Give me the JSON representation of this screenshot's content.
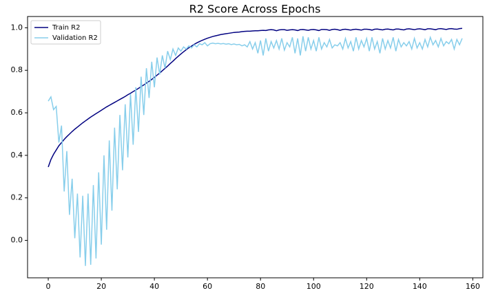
{
  "chart_data": {
    "type": "line",
    "title": "R2 Score Across Epochs",
    "x": [
      0,
      1,
      2,
      3,
      4,
      5,
      6,
      7,
      8,
      9,
      10,
      11,
      12,
      13,
      14,
      15,
      16,
      17,
      18,
      19,
      20,
      21,
      22,
      23,
      24,
      25,
      26,
      27,
      28,
      29,
      30,
      31,
      32,
      33,
      34,
      35,
      36,
      37,
      38,
      39,
      40,
      41,
      42,
      43,
      44,
      45,
      46,
      47,
      48,
      49,
      50,
      51,
      52,
      53,
      54,
      55,
      56,
      57,
      58,
      59,
      60,
      61,
      62,
      63,
      64,
      65,
      66,
      67,
      68,
      69,
      70,
      71,
      72,
      73,
      74,
      75,
      76,
      77,
      78,
      79,
      80,
      81,
      82,
      83,
      84,
      85,
      86,
      87,
      88,
      89,
      90,
      91,
      92,
      93,
      94,
      95,
      96,
      97,
      98,
      99,
      100,
      101,
      102,
      103,
      104,
      105,
      106,
      107,
      108,
      109,
      110,
      111,
      112,
      113,
      114,
      115,
      116,
      117,
      118,
      119,
      120,
      121,
      122,
      123,
      124,
      125,
      126,
      127,
      128,
      129,
      130,
      131,
      132,
      133,
      134,
      135,
      136,
      137,
      138,
      139,
      140,
      141,
      142,
      143,
      144,
      145,
      146,
      147,
      148,
      149,
      150,
      151,
      152,
      153,
      154,
      155,
      156
    ],
    "series": [
      {
        "name": "Train R2",
        "color": "#000080",
        "values": [
          0.345,
          0.38,
          0.405,
          0.425,
          0.445,
          0.46,
          0.475,
          0.488,
          0.5,
          0.512,
          0.523,
          0.533,
          0.543,
          0.553,
          0.562,
          0.571,
          0.58,
          0.588,
          0.596,
          0.604,
          0.612,
          0.62,
          0.628,
          0.635,
          0.642,
          0.649,
          0.656,
          0.663,
          0.67,
          0.677,
          0.685,
          0.692,
          0.7,
          0.707,
          0.715,
          0.723,
          0.731,
          0.74,
          0.748,
          0.757,
          0.767,
          0.777,
          0.787,
          0.798,
          0.809,
          0.82,
          0.832,
          0.843,
          0.855,
          0.866,
          0.877,
          0.887,
          0.897,
          0.906,
          0.914,
          0.922,
          0.929,
          0.935,
          0.941,
          0.946,
          0.951,
          0.955,
          0.959,
          0.962,
          0.965,
          0.968,
          0.97,
          0.972,
          0.974,
          0.976,
          0.978,
          0.979,
          0.98,
          0.982,
          0.983,
          0.984,
          0.984,
          0.985,
          0.986,
          0.986,
          0.987,
          0.988,
          0.987,
          0.99,
          0.991,
          0.99,
          0.986,
          0.99,
          0.991,
          0.991,
          0.988,
          0.99,
          0.991,
          0.99,
          0.987,
          0.991,
          0.992,
          0.99,
          0.988,
          0.991,
          0.992,
          0.99,
          0.987,
          0.992,
          0.992,
          0.991,
          0.988,
          0.992,
          0.993,
          0.991,
          0.988,
          0.992,
          0.993,
          0.991,
          0.989,
          0.992,
          0.993,
          0.991,
          0.989,
          0.993,
          0.993,
          0.992,
          0.989,
          0.993,
          0.994,
          0.992,
          0.99,
          0.993,
          0.994,
          0.992,
          0.99,
          0.994,
          0.994,
          0.992,
          0.99,
          0.994,
          0.995,
          0.993,
          0.991,
          0.994,
          0.995,
          0.993,
          0.991,
          0.995,
          0.995,
          0.993,
          0.991,
          0.995,
          0.996,
          0.994,
          0.992,
          0.995,
          0.996,
          0.994,
          0.993,
          0.996,
          0.997
        ]
      },
      {
        "name": "Validation R2",
        "color": "#87ceeb",
        "values": [
          0.655,
          0.675,
          0.615,
          0.63,
          0.46,
          0.54,
          0.23,
          0.42,
          0.12,
          0.29,
          0.01,
          0.22,
          -0.08,
          0.21,
          -0.12,
          0.22,
          -0.115,
          0.26,
          -0.085,
          0.32,
          -0.02,
          0.4,
          0.05,
          0.47,
          0.14,
          0.53,
          0.24,
          0.59,
          0.33,
          0.64,
          0.39,
          0.69,
          0.45,
          0.72,
          0.51,
          0.77,
          0.59,
          0.81,
          0.67,
          0.84,
          0.72,
          0.86,
          0.78,
          0.87,
          0.81,
          0.89,
          0.85,
          0.9,
          0.87,
          0.905,
          0.89,
          0.91,
          0.9,
          0.915,
          0.905,
          0.92,
          0.91,
          0.925,
          0.92,
          0.93,
          0.915,
          0.925,
          0.928,
          0.925,
          0.927,
          0.924,
          0.926,
          0.923,
          0.925,
          0.921,
          0.924,
          0.92,
          0.922,
          0.915,
          0.92,
          0.91,
          0.935,
          0.9,
          0.93,
          0.88,
          0.94,
          0.87,
          0.95,
          0.89,
          0.935,
          0.905,
          0.94,
          0.9,
          0.95,
          0.895,
          0.93,
          0.91,
          0.955,
          0.88,
          0.95,
          0.87,
          0.96,
          0.89,
          0.955,
          0.9,
          0.94,
          0.89,
          0.955,
          0.9,
          0.93,
          0.91,
          0.945,
          0.905,
          0.92,
          0.915,
          0.93,
          0.9,
          0.95,
          0.905,
          0.935,
          0.89,
          0.955,
          0.9,
          0.94,
          0.91,
          0.95,
          0.89,
          0.955,
          0.9,
          0.935,
          0.88,
          0.95,
          0.9,
          0.94,
          0.905,
          0.955,
          0.89,
          0.945,
          0.91,
          0.93,
          0.915,
          0.935,
          0.9,
          0.95,
          0.905,
          0.93,
          0.9,
          0.945,
          0.91,
          0.955,
          0.92,
          0.94,
          0.91,
          0.95,
          0.915,
          0.935,
          0.925,
          0.945,
          0.9,
          0.945,
          0.92,
          0.95
        ]
      }
    ],
    "xlim": [
      -7.8,
      163.8
    ],
    "xticks": [
      0,
      20,
      40,
      60,
      80,
      100,
      120,
      140,
      160
    ],
    "ylim": [
      -0.176,
      1.053
    ],
    "yticks": [
      {
        "value": 0,
        "label": "0.0"
      },
      0.2,
      0.4,
      0.6,
      0.8,
      {
        "value": 1,
        "label": "1.0"
      }
    ],
    "grid": false,
    "legend": "upper-left"
  }
}
